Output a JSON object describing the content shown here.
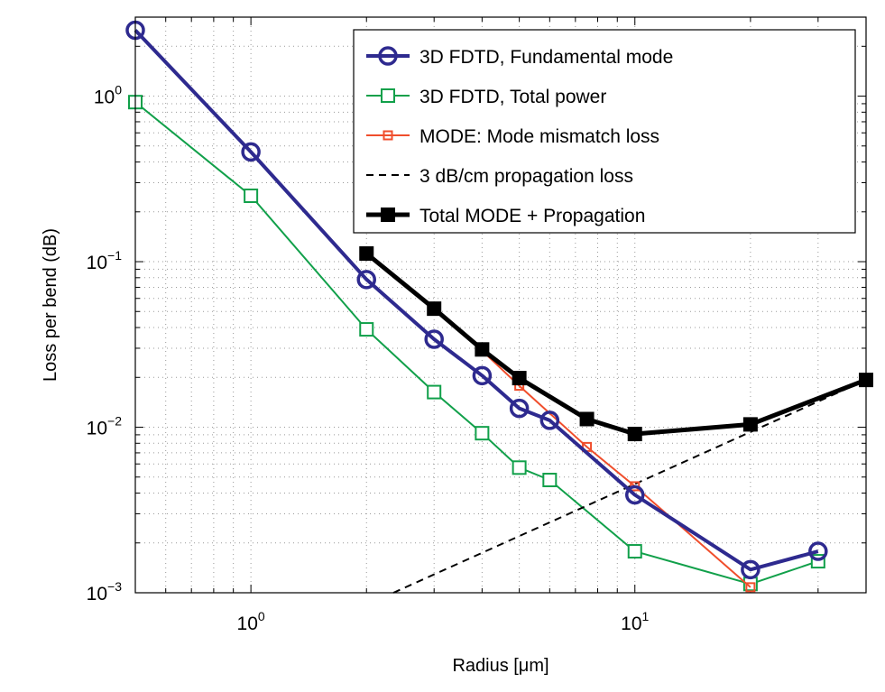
{
  "chart_data": {
    "type": "line",
    "xlabel": "Radius [μm]",
    "ylabel": "Loss per bend (dB)",
    "x_scale": "log",
    "y_scale": "log",
    "xlim": [
      0.5,
      40
    ],
    "ylim": [
      0.001,
      3
    ],
    "grid": true,
    "legend_position": "top-right",
    "x_ticks": [
      {
        "value": 1,
        "base": "10",
        "exp": "0"
      },
      {
        "value": 10,
        "base": "10",
        "exp": "1"
      }
    ],
    "y_ticks": [
      {
        "value": 1,
        "base": "10",
        "exp": "0"
      },
      {
        "value": 0.1,
        "base": "10",
        "exp": "−1"
      },
      {
        "value": 0.01,
        "base": "10",
        "exp": "−2"
      },
      {
        "value": 0.001,
        "base": "10",
        "exp": "−3"
      }
    ],
    "series": [
      {
        "name": "3D FDTD, Fundamental mode",
        "color": "#2e2a8f",
        "marker": "circle",
        "line_width": 4,
        "x": [
          0.5,
          1,
          2,
          3,
          4,
          5,
          6,
          10,
          20,
          30
        ],
        "y": [
          2.5,
          0.46,
          0.078,
          0.034,
          0.0205,
          0.013,
          0.011,
          0.0039,
          0.00138,
          0.00178
        ]
      },
      {
        "name": "3D FDTD, Total power",
        "color": "#11a04a",
        "marker": "square-open",
        "line_width": 2,
        "x": [
          0.5,
          1,
          2,
          3,
          4,
          5,
          6,
          10,
          20,
          30
        ],
        "y": [
          0.92,
          0.25,
          0.039,
          0.0163,
          0.0092,
          0.0057,
          0.0048,
          0.00178,
          0.00113,
          0.00155
        ]
      },
      {
        "name": "MODE: Mode mismatch loss",
        "color": "#f04e2c",
        "marker": "square-small",
        "line_width": 2,
        "x": [
          2,
          3,
          4,
          5,
          7.5,
          10,
          20
        ],
        "y": [
          0.112,
          0.052,
          0.029,
          0.0178,
          0.0076,
          0.0044,
          0.00108
        ]
      },
      {
        "name": "3 dB/cm propagation loss",
        "color": "#000000",
        "marker": "none",
        "line_width": 2,
        "dashed": true,
        "x": [
          2.35,
          40
        ],
        "y": [
          0.001,
          0.0193
        ]
      },
      {
        "name": "Total MODE + Propagation",
        "color": "#000000",
        "marker": "square-filled",
        "line_width": 5,
        "x": [
          2,
          3,
          4,
          5,
          7.5,
          10,
          20,
          40
        ],
        "y": [
          0.112,
          0.052,
          0.0295,
          0.0198,
          0.0112,
          0.0091,
          0.0104,
          0.0193
        ]
      }
    ]
  }
}
